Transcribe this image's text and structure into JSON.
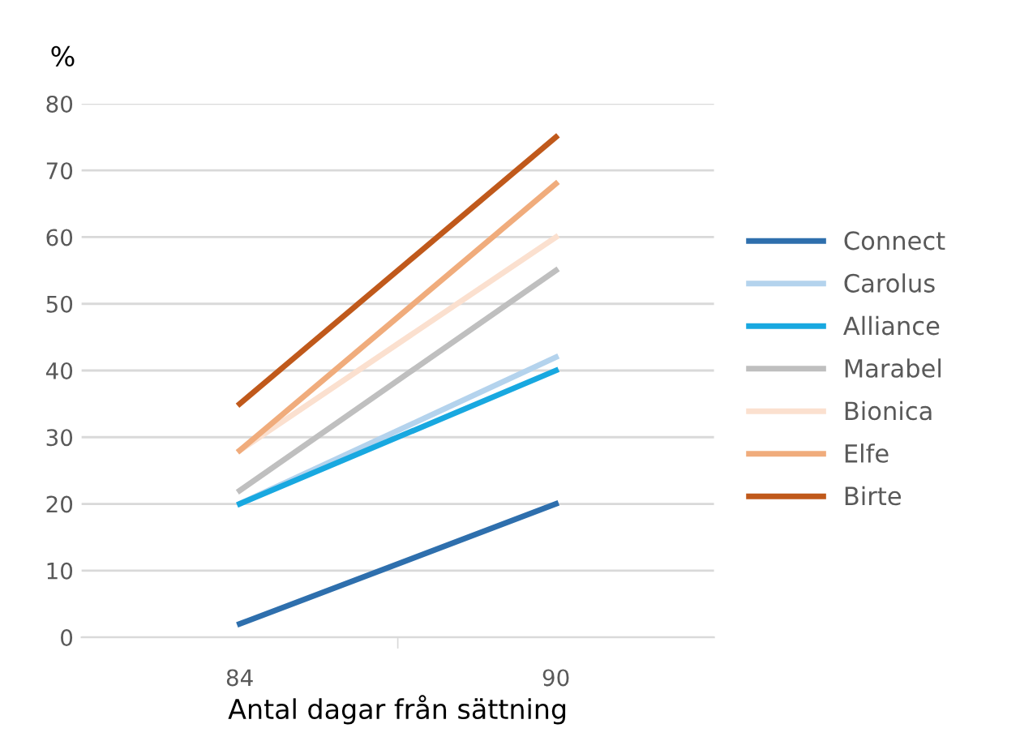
{
  "chart_data": {
    "type": "line",
    "ylabel": "%",
    "xlabel": "Antal dagar från sättning",
    "categories": [
      "84",
      "90"
    ],
    "series": [
      {
        "name": "Connect",
        "color": "#2e6fad",
        "values": [
          2,
          20
        ]
      },
      {
        "name": "Carolus",
        "color": "#b4d3ed",
        "values": [
          20,
          42
        ]
      },
      {
        "name": "Alliance",
        "color": "#18a8e0",
        "values": [
          20,
          40
        ]
      },
      {
        "name": "Marabel",
        "color": "#bfbfbf",
        "values": [
          22,
          55
        ]
      },
      {
        "name": "Bionica",
        "color": "#fbe0cf",
        "values": [
          28,
          60
        ]
      },
      {
        "name": "Elfe",
        "color": "#f0ac7c",
        "values": [
          28,
          68
        ]
      },
      {
        "name": "Birte",
        "color": "#c0591b",
        "values": [
          35,
          75
        ]
      }
    ],
    "ylim": [
      0,
      80
    ],
    "yticks": [
      0,
      10,
      20,
      30,
      40,
      50,
      60,
      70,
      80
    ],
    "grid": "y",
    "legend": "right",
    "marker": "none",
    "line_style": "solid"
  }
}
